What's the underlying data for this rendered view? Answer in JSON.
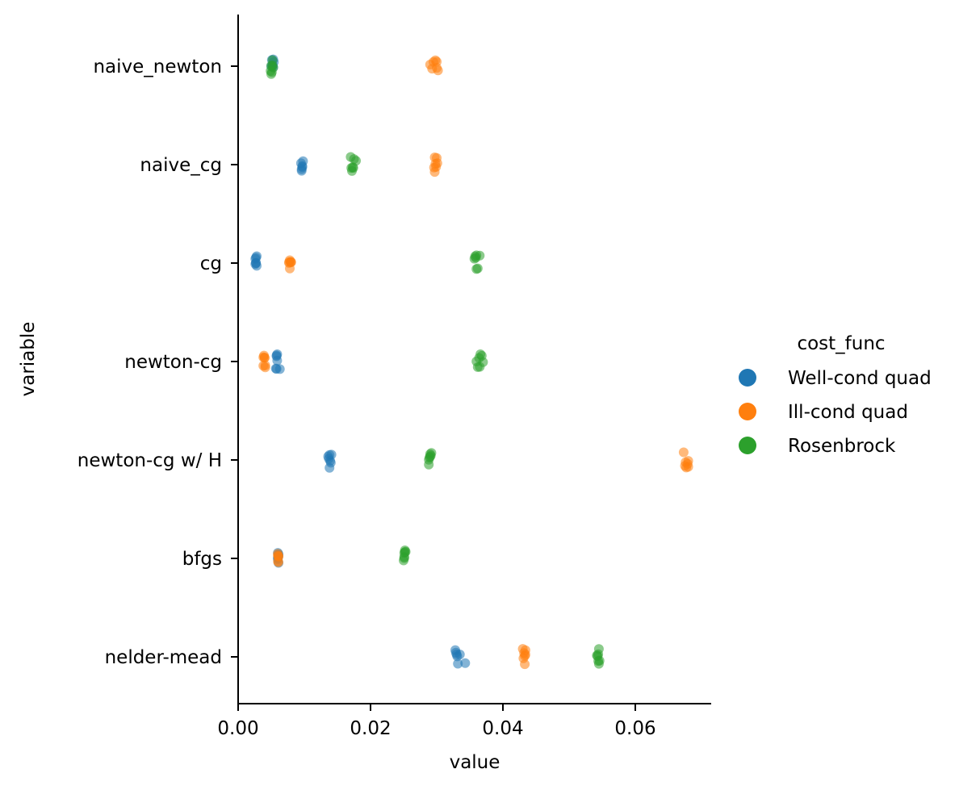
{
  "chart_data": {
    "type": "scatter",
    "title": "",
    "xlabel": "value",
    "ylabel": "variable",
    "xlim": [
      -0.0008,
      0.0712
    ],
    "xticks": [
      0.0,
      0.02,
      0.04,
      0.06
    ],
    "xtick_labels": [
      "0.00",
      "0.02",
      "0.04",
      "0.06"
    ],
    "categories": [
      "naive_newton",
      "naive_cg",
      "cg",
      "newton-cg",
      "newton-cg w/ H",
      "bfgs",
      "nelder-mead"
    ],
    "grid": false,
    "legend_position": "right",
    "legend": {
      "title": "cost_func",
      "entries": [
        {
          "name": "Well-cond quad",
          "color": "#1f77b4"
        },
        {
          "name": "Ill-cond quad",
          "color": "#ff7f0e"
        },
        {
          "name": "Rosenbrock",
          "color": "#2ca02c"
        }
      ]
    },
    "series": [
      {
        "name": "Well-cond quad",
        "color": "#1f77b4",
        "points": [
          {
            "category": "naive_newton",
            "values": [
              0.0052,
              0.0053,
              0.0051,
              0.0054,
              0.0052,
              0.005,
              0.0053
            ]
          },
          {
            "category": "naive_cg",
            "values": [
              0.0096,
              0.0097,
              0.0095,
              0.0098,
              0.0096,
              0.0097
            ]
          },
          {
            "category": "cg",
            "values": [
              0.0028,
              0.0027,
              0.0026,
              0.0028,
              0.0027,
              0.0026,
              0.0027
            ]
          },
          {
            "category": "newton-cg",
            "values": [
              0.0058,
              0.0059,
              0.0057,
              0.0063,
              0.0058,
              0.0059,
              0.0058
            ]
          },
          {
            "category": "newton-cg w/ H",
            "values": [
              0.0138,
              0.0137,
              0.0139,
              0.014,
              0.0136,
              0.0141,
              0.0138
            ]
          },
          {
            "category": "bfgs",
            "values": [
              0.006,
              0.0061,
              0.006,
              0.0061,
              0.006,
              0.0061
            ]
          },
          {
            "category": "nelder-mead",
            "values": [
              0.033,
              0.0335,
              0.0328,
              0.0332,
              0.0329,
              0.0343,
              0.0331
            ]
          }
        ]
      },
      {
        "name": "Ill-cond quad",
        "color": "#ff7f0e",
        "points": [
          {
            "category": "naive_newton",
            "values": [
              0.0295,
              0.03,
              0.029,
              0.0302,
              0.0293,
              0.0298,
              0.03
            ]
          },
          {
            "category": "naive_cg",
            "values": [
              0.0298,
              0.03,
              0.0297,
              0.0301,
              0.0296,
              0.0299,
              0.0297
            ]
          },
          {
            "category": "cg",
            "values": [
              0.0078,
              0.008,
              0.0077,
              0.0079,
              0.0078,
              0.008,
              0.0077
            ]
          },
          {
            "category": "newton-cg",
            "values": [
              0.004,
              0.0038,
              0.0041,
              0.0039,
              0.004,
              0.0038,
              0.0041
            ]
          },
          {
            "category": "newton-cg w/ H",
            "values": [
              0.0677,
              0.068,
              0.0675,
              0.0679,
              0.0676,
              0.068,
              0.0673
            ]
          },
          {
            "category": "bfgs",
            "values": [
              0.006,
              0.0061,
              0.006,
              0.0061,
              0.006,
              0.0061
            ]
          },
          {
            "category": "nelder-mead",
            "values": [
              0.0432,
              0.0433,
              0.043,
              0.0434,
              0.0431,
              0.0433,
              0.0434
            ]
          }
        ]
      },
      {
        "name": "Rosenbrock",
        "color": "#2ca02c",
        "points": [
          {
            "category": "naive_newton",
            "values": [
              0.005,
              0.0052,
              0.0051,
              0.0053,
              0.005,
              0.0052,
              0.0049
            ]
          },
          {
            "category": "naive_cg",
            "values": [
              0.0172,
              0.0178,
              0.017,
              0.0175,
              0.0171,
              0.0174,
              0.0173
            ]
          },
          {
            "category": "cg",
            "values": [
              0.036,
              0.0357,
              0.0362,
              0.0359,
              0.0365,
              0.0358,
              0.036
            ]
          },
          {
            "category": "newton-cg",
            "values": [
              0.037,
              0.0365,
              0.0362,
              0.0368,
              0.036,
              0.0366,
              0.0364
            ]
          },
          {
            "category": "newton-cg w/ H",
            "values": [
              0.0288,
              0.0292,
              0.0289,
              0.0291,
              0.029,
              0.0288,
              0.029
            ]
          },
          {
            "category": "bfgs",
            "values": [
              0.0251,
              0.0252,
              0.025,
              0.0253,
              0.0251,
              0.0252,
              0.0251
            ]
          },
          {
            "category": "nelder-mead",
            "values": [
              0.0542,
              0.0545,
              0.0544,
              0.0543,
              0.0546,
              0.0544,
              0.0545
            ]
          }
        ]
      }
    ]
  }
}
